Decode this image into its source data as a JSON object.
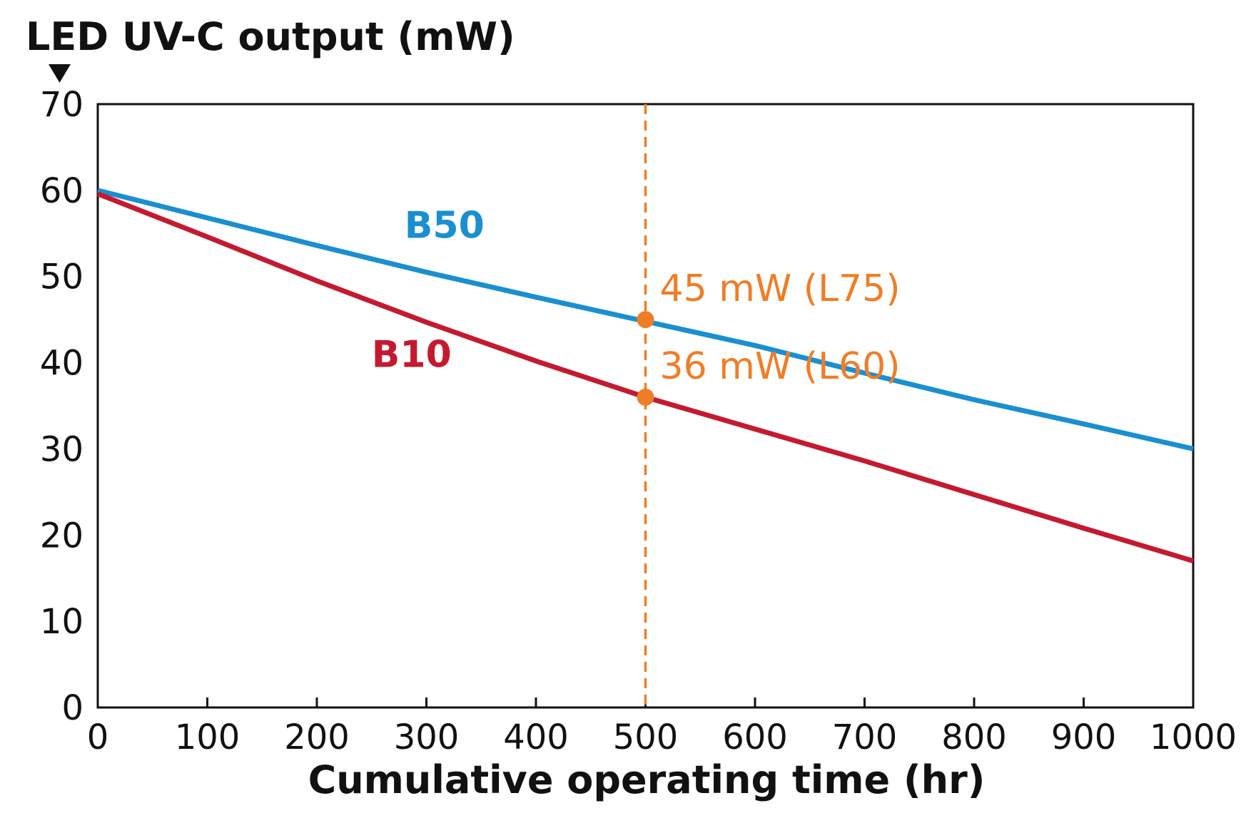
{
  "chart_data": {
    "type": "line",
    "xlabel": "Cumulative operating time (hr)",
    "ylabel": "LED UV-C output (mW)",
    "xlim": [
      0,
      1000
    ],
    "ylim": [
      0,
      70
    ],
    "xticks": [
      0,
      100,
      200,
      300,
      400,
      500,
      600,
      700,
      800,
      900,
      1000
    ],
    "yticks": [
      0,
      10,
      20,
      30,
      40,
      50,
      60,
      70
    ],
    "grid": false,
    "series": [
      {
        "name": "B50",
        "color": "#1a8fd0",
        "x": [
          0,
          100,
          200,
          300,
          400,
          500,
          600,
          700,
          800,
          900,
          1000
        ],
        "y": [
          60,
          56.8,
          53.6,
          50.5,
          47.6,
          44.8,
          42,
          38.8,
          35.7,
          32.9,
          30
        ]
      },
      {
        "name": "B10",
        "color": "#c41a30",
        "x": [
          0,
          100,
          200,
          300,
          400,
          500,
          600,
          700,
          800,
          900,
          1000
        ],
        "y": [
          59.6,
          54.6,
          49.5,
          44.7,
          40.2,
          36,
          32.3,
          28.6,
          24.7,
          20.8,
          17
        ]
      }
    ],
    "reference_line": {
      "x": 500,
      "style": "dashed",
      "color": "#f07d26"
    },
    "annotations": [
      {
        "x": 500,
        "y": 45,
        "text": "45 mW (L75)",
        "color": "#f07d26"
      },
      {
        "x": 500,
        "y": 36,
        "text": "36 mW (L60)",
        "color": "#f07d26"
      }
    ]
  }
}
